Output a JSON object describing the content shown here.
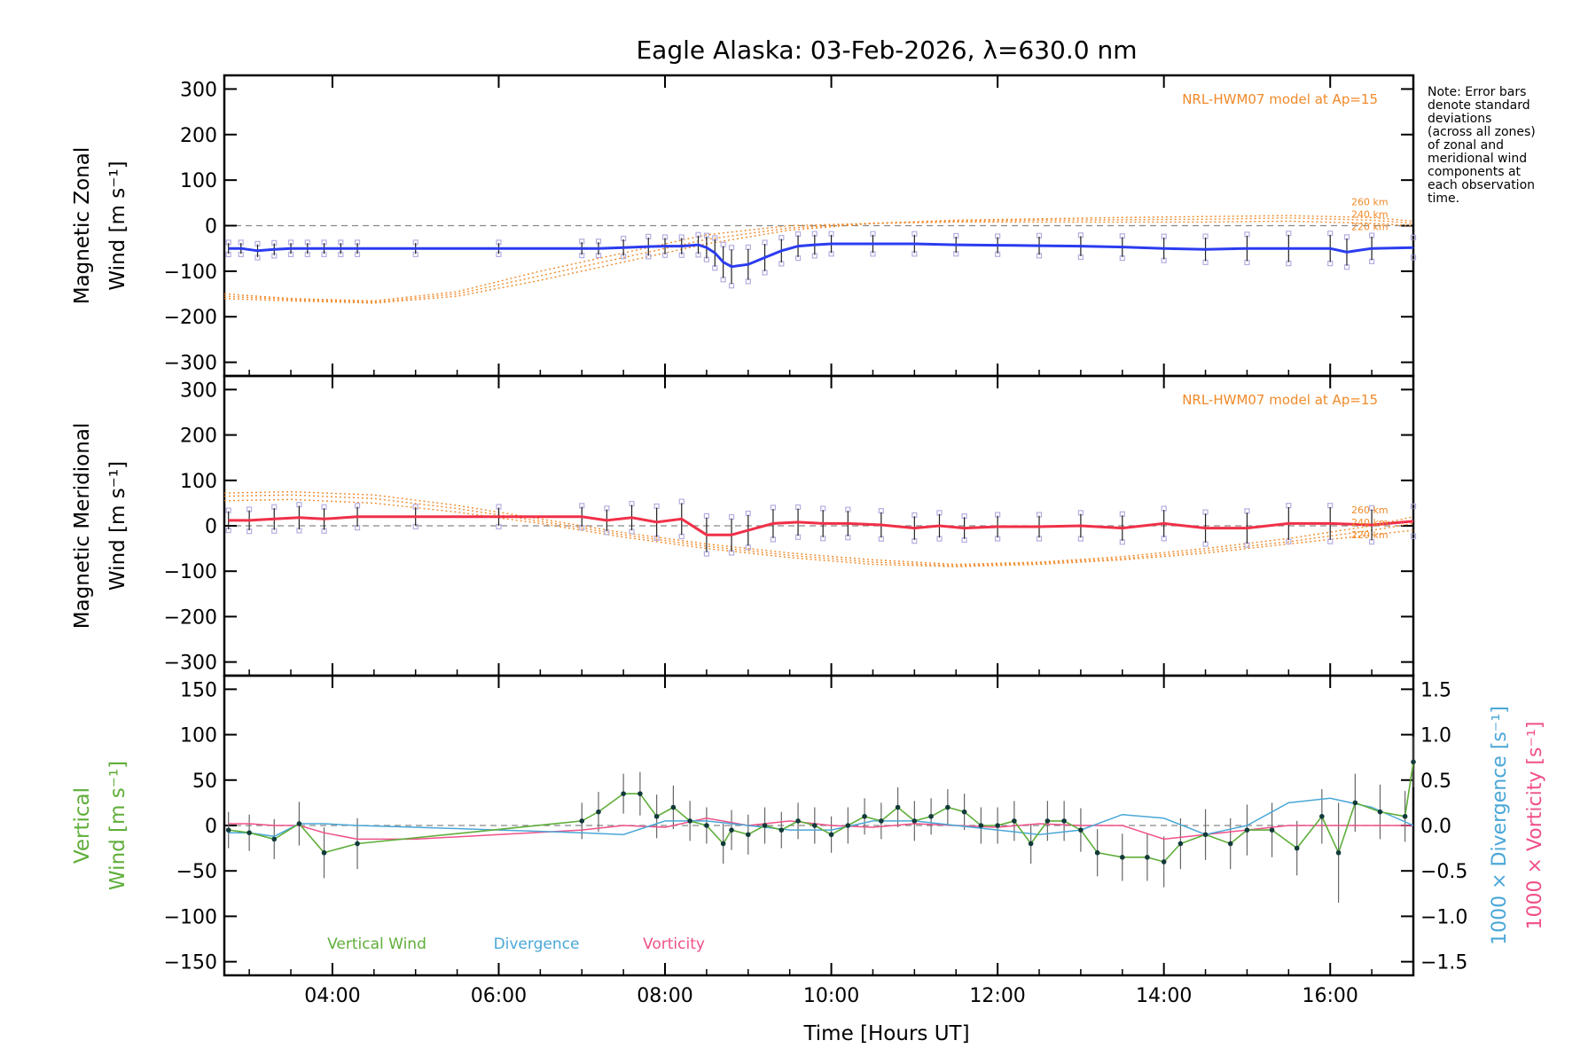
{
  "chart_data": {
    "type": "line",
    "title": "Eagle Alaska: 03-Feb-2026, λ=630.0 nm",
    "xlabel": "Time [Hours UT]",
    "xlim": [
      2.7,
      17.0
    ],
    "x_ticks": [
      {
        "value": 4,
        "label": "04:00"
      },
      {
        "value": 6,
        "label": "06:00"
      },
      {
        "value": 8,
        "label": "08:00"
      },
      {
        "value": 10,
        "label": "10:00"
      },
      {
        "value": 12,
        "label": "12:00"
      },
      {
        "value": 14,
        "label": "14:00"
      },
      {
        "value": 16,
        "label": "16:00"
      }
    ],
    "note": {
      "lines": [
        "Note: Error bars",
        "denote standard",
        "deviations",
        "(across all zones)",
        "of zonal and",
        "meridional wind",
        "components at",
        "each observation",
        "time."
      ]
    },
    "colors": {
      "zonal": "#2b3cf0",
      "meridional": "#f03048",
      "model": "#f08a2a",
      "zones": "#b4aee0",
      "vertical": "#5fae3a",
      "divergence": "#4aa7d8",
      "vorticity": "#f0508a",
      "errorbar": "#222222",
      "grid": "#888888"
    },
    "panels": [
      {
        "id": "zonal",
        "ylabel_lines": [
          "Magnetic Zonal",
          "Wind [m s⁻¹]"
        ],
        "ylim": [
          -330,
          330
        ],
        "y_ticks": [
          300,
          200,
          100,
          0,
          -100,
          -200,
          -300
        ],
        "model_label": "NRL-HWM07 model at Ap=15",
        "altitude_labels": [
          "260 km",
          "240 km",
          "220 km"
        ],
        "series": [
          {
            "name": "Zonal wind",
            "x": [
              2.75,
              2.9,
              3.1,
              3.3,
              3.5,
              3.7,
              3.9,
              4.1,
              4.3,
              5.0,
              6.0,
              7.0,
              7.2,
              7.5,
              7.8,
              8.0,
              8.2,
              8.4,
              8.5,
              8.6,
              8.7,
              8.8,
              9.0,
              9.2,
              9.4,
              9.6,
              9.8,
              10.0,
              10.5,
              11.0,
              11.5,
              12.0,
              12.5,
              13.0,
              13.5,
              14.0,
              14.5,
              15.0,
              15.5,
              16.0,
              16.2,
              16.5,
              17.0
            ],
            "y": [
              -50,
              -50,
              -55,
              -52,
              -50,
              -50,
              -50,
              -50,
              -50,
              -50,
              -50,
              -50,
              -50,
              -48,
              -46,
              -45,
              -45,
              -42,
              -48,
              -60,
              -80,
              -90,
              -85,
              -70,
              -55,
              -45,
              -42,
              -40,
              -40,
              -40,
              -42,
              -43,
              -44,
              -45,
              -47,
              -50,
              -52,
              -50,
              -50,
              -50,
              -58,
              -50,
              -48
            ],
            "errors": [
              12,
              12,
              14,
              13,
              12,
              12,
              12,
              12,
              12,
              12,
              12,
              14,
              14,
              18,
              20,
              18,
              18,
              20,
              24,
              30,
              35,
              38,
              34,
              30,
              26,
              24,
              22,
              20,
              20,
              20,
              18,
              18,
              20,
              22,
              22,
              24,
              26,
              28,
              30,
              30,
              30,
              26,
              20
            ]
          },
          {
            "name": "HWM07 220 km",
            "x": [
              2.7,
              3.5,
              4.5,
              5.5,
              6.5,
              7.5,
              8.5,
              9.5,
              10.5,
              11.5,
              12.5,
              13.5,
              14.5,
              15.5,
              16.5,
              17.0
            ],
            "y": [
              -150,
              -160,
              -165,
              -145,
              -100,
              -60,
              -20,
              0,
              5,
              8,
              8,
              8,
              8,
              10,
              5,
              0
            ]
          },
          {
            "name": "HWM07 240 km",
            "x": [
              2.7,
              3.5,
              4.5,
              5.5,
              6.5,
              7.5,
              8.5,
              9.5,
              10.5,
              11.5,
              12.5,
              13.5,
              14.5,
              15.5,
              16.5,
              17.0
            ],
            "y": [
              -155,
              -162,
              -168,
              -150,
              -110,
              -70,
              -30,
              -5,
              5,
              10,
              12,
              13,
              14,
              17,
              12,
              5
            ]
          },
          {
            "name": "HWM07 260 km",
            "x": [
              2.7,
              3.5,
              4.5,
              5.5,
              6.5,
              7.5,
              8.5,
              9.5,
              10.5,
              11.5,
              12.5,
              13.5,
              14.5,
              15.5,
              16.5,
              17.0
            ],
            "y": [
              -160,
              -165,
              -170,
              -155,
              -120,
              -80,
              -40,
              -10,
              5,
              12,
              15,
              18,
              20,
              22,
              18,
              10
            ]
          }
        ]
      },
      {
        "id": "meridional",
        "ylabel_lines": [
          "Magnetic Meridional",
          "Wind [m s⁻¹]"
        ],
        "ylim": [
          -330,
          330
        ],
        "y_ticks": [
          300,
          200,
          100,
          0,
          -100,
          -200,
          -300
        ],
        "model_label": "NRL-HWM07 model at Ap=15",
        "altitude_labels": [
          "260 km",
          "240 km",
          "220 km"
        ],
        "series": [
          {
            "name": "Meridional wind",
            "x": [
              2.75,
              3.0,
              3.3,
              3.6,
              3.9,
              4.3,
              5.0,
              6.0,
              7.0,
              7.3,
              7.6,
              7.9,
              8.2,
              8.5,
              8.8,
              9.0,
              9.3,
              9.6,
              9.9,
              10.2,
              10.6,
              11.0,
              11.3,
              11.6,
              12.0,
              12.5,
              13.0,
              13.5,
              14.0,
              14.5,
              15.0,
              15.5,
              16.0,
              16.5,
              17.0
            ],
            "y": [
              12,
              12,
              15,
              18,
              15,
              20,
              20,
              20,
              20,
              12,
              18,
              8,
              15,
              -20,
              -20,
              -10,
              5,
              8,
              5,
              5,
              2,
              -5,
              0,
              -5,
              -2,
              -2,
              0,
              -5,
              5,
              -5,
              -5,
              5,
              5,
              2,
              10
            ],
            "errors": [
              20,
              22,
              24,
              26,
              24,
              22,
              20,
              20,
              22,
              24,
              28,
              32,
              35,
              38,
              36,
              34,
              32,
              30,
              30,
              28,
              28,
              26,
              26,
              24,
              24,
              24,
              26,
              28,
              30,
              32,
              34,
              36,
              36,
              34,
              30
            ]
          },
          {
            "name": "HWM07 220 km",
            "x": [
              2.7,
              3.5,
              4.5,
              5.5,
              6.5,
              7.5,
              8.5,
              9.5,
              10.5,
              11.5,
              12.5,
              13.5,
              14.5,
              15.5,
              16.5,
              17.0
            ],
            "y": [
              55,
              58,
              50,
              30,
              5,
              -25,
              -50,
              -70,
              -85,
              -90,
              -85,
              -75,
              -60,
              -40,
              -20,
              -10
            ]
          },
          {
            "name": "HWM07 240 km",
            "x": [
              2.7,
              3.5,
              4.5,
              5.5,
              6.5,
              7.5,
              8.5,
              9.5,
              10.5,
              11.5,
              12.5,
              13.5,
              14.5,
              15.5,
              16.5,
              17.0
            ],
            "y": [
              65,
              68,
              60,
              38,
              10,
              -20,
              -45,
              -65,
              -80,
              -88,
              -82,
              -72,
              -55,
              -35,
              -10,
              5
            ]
          },
          {
            "name": "HWM07 260 km",
            "x": [
              2.7,
              3.5,
              4.5,
              5.5,
              6.5,
              7.5,
              8.5,
              9.5,
              10.5,
              11.5,
              12.5,
              13.5,
              14.5,
              15.5,
              16.5,
              17.0
            ],
            "y": [
              72,
              75,
              68,
              45,
              15,
              -15,
              -40,
              -60,
              -75,
              -85,
              -80,
              -68,
              -50,
              -28,
              0,
              20
            ]
          }
        ]
      },
      {
        "id": "vertical",
        "ylabel_lines": [
          "Vertical",
          "Wind [m s⁻¹]"
        ],
        "ylim": [
          -165,
          165
        ],
        "y_ticks": [
          150,
          100,
          50,
          0,
          -50,
          -100,
          -150
        ],
        "right_ylim": [
          -1.65,
          1.65
        ],
        "right_ticks": [
          {
            "value": 1.5,
            "label": "1.5"
          },
          {
            "value": 1.0,
            "label": "1.0"
          },
          {
            "value": 0.5,
            "label": "0.5"
          },
          {
            "value": 0.0,
            "label": "0.0"
          },
          {
            "value": -0.5,
            "label": "−0.5"
          },
          {
            "value": -1.0,
            "label": "−1.0"
          },
          {
            "value": -1.5,
            "label": "−1.5"
          }
        ],
        "right_label_div": "1000 × Divergence [s⁻¹]",
        "right_label_vort": "1000 × Vorticity [s⁻¹]",
        "legend": [
          "Vertical Wind",
          "Divergence",
          "Vorticity"
        ],
        "series": [
          {
            "name": "Vertical Wind",
            "x": [
              2.75,
              3.0,
              3.3,
              3.6,
              3.9,
              4.3,
              7.0,
              7.2,
              7.5,
              7.7,
              7.9,
              8.1,
              8.3,
              8.5,
              8.7,
              8.8,
              9.0,
              9.2,
              9.4,
              9.6,
              9.8,
              10.0,
              10.2,
              10.4,
              10.6,
              10.8,
              11.0,
              11.2,
              11.4,
              11.6,
              11.8,
              12.0,
              12.2,
              12.4,
              12.6,
              12.8,
              13.0,
              13.2,
              13.5,
              13.8,
              14.0,
              14.2,
              14.5,
              14.8,
              15.0,
              15.3,
              15.6,
              15.9,
              16.1,
              16.3,
              16.6,
              16.9,
              17.0
            ],
            "y": [
              -5,
              -8,
              -15,
              2,
              -30,
              -20,
              5,
              15,
              35,
              35,
              10,
              20,
              5,
              0,
              -20,
              -5,
              -10,
              0,
              -5,
              5,
              0,
              -10,
              0,
              10,
              5,
              20,
              5,
              10,
              20,
              15,
              0,
              0,
              5,
              -20,
              5,
              5,
              -5,
              -30,
              -35,
              -35,
              -40,
              -20,
              -10,
              -20,
              -5,
              -5,
              -25,
              10,
              -30,
              25,
              15,
              10,
              70
            ],
            "errors": [
              20,
              20,
              22,
              24,
              28,
              28,
              20,
              22,
              22,
              24,
              24,
              24,
              22,
              20,
              22,
              22,
              22,
              20,
              20,
              20,
              20,
              20,
              20,
              20,
              20,
              22,
              22,
              20,
              20,
              20,
              20,
              20,
              22,
              22,
              22,
              22,
              24,
              26,
              26,
              26,
              28,
              28,
              28,
              28,
              28,
              30,
              30,
              30,
              55,
              32,
              30,
              28,
              28
            ]
          },
          {
            "name": "Divergence",
            "x": [
              2.75,
              3.0,
              3.3,
              3.6,
              3.9,
              4.3,
              5.0,
              6.0,
              7.0,
              7.5,
              8.0,
              8.5,
              9.0,
              9.5,
              10.0,
              10.5,
              11.0,
              11.5,
              12.0,
              12.5,
              13.0,
              13.5,
              14.0,
              14.5,
              15.0,
              15.5,
              16.0,
              16.5,
              17.0
            ],
            "y": [
              -0.08,
              -0.08,
              -0.12,
              0.02,
              0.02,
              0.0,
              -0.02,
              -0.05,
              -0.08,
              -0.1,
              0.05,
              0.05,
              0.0,
              -0.05,
              -0.05,
              0.05,
              0.05,
              0.0,
              -0.05,
              -0.1,
              -0.05,
              0.12,
              0.08,
              -0.1,
              0.0,
              0.25,
              0.3,
              0.2,
              0.0
            ]
          },
          {
            "name": "Vorticity",
            "x": [
              2.75,
              3.0,
              3.3,
              3.6,
              3.9,
              4.3,
              5.0,
              6.0,
              7.0,
              7.5,
              8.0,
              8.5,
              9.0,
              9.5,
              10.0,
              10.5,
              11.0,
              11.5,
              12.0,
              12.5,
              13.0,
              13.5,
              14.0,
              14.5,
              15.0,
              15.5,
              16.0,
              16.5,
              17.0
            ],
            "y": [
              0.02,
              0.02,
              0.0,
              0.0,
              -0.08,
              -0.15,
              -0.15,
              -0.1,
              -0.05,
              0.0,
              -0.02,
              0.08,
              0.0,
              0.05,
              0.0,
              -0.02,
              0.02,
              0.0,
              -0.02,
              0.02,
              0.0,
              0.0,
              -0.15,
              -0.1,
              -0.05,
              0.0,
              0.0,
              0.0,
              0.0
            ]
          }
        ]
      }
    ]
  }
}
